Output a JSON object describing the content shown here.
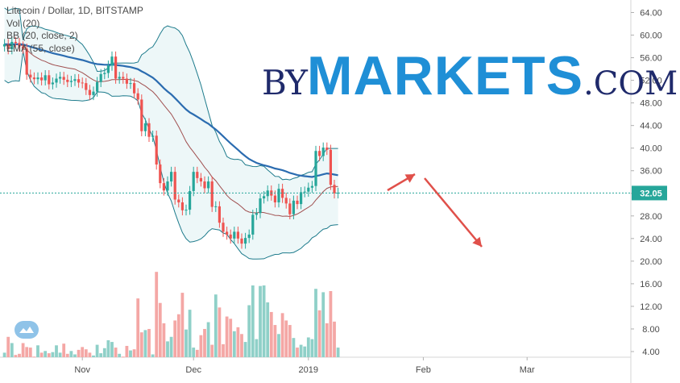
{
  "legend": {
    "title": "Litecoin / Dollar, 1D, BITSTAMP",
    "vol": "Vol (20)",
    "bb": "BB (20, close, 2)",
    "ema": "EMA (55, close)"
  },
  "watermark": {
    "by": "BY",
    "markets": "MARKETS",
    "com": ".COM"
  },
  "colors": {
    "up": "#26a69a",
    "down": "#ef5350",
    "bb_band": "#1e7b8c",
    "bb_basis": "#a05050",
    "ema": "#2b6cb0",
    "price_badge": "#26a69a",
    "arrow": "#e0504a",
    "fill": "#d7eef0"
  },
  "current_price": "32.05",
  "chart_data": {
    "type": "candlestick",
    "title": "Litecoin / Dollar, 1D, BITSTAMP",
    "ylim": [
      3,
      65
    ],
    "y_ticks": [
      "64.00",
      "60.00",
      "56.00",
      "52.00",
      "48.00",
      "44.00",
      "40.00",
      "36.00",
      "32.00",
      "28.00",
      "24.00",
      "20.00",
      "16.00",
      "12.00",
      "8.00",
      "4.00"
    ],
    "x_ticks": [
      {
        "label": "Nov",
        "day": 21
      },
      {
        "label": "Dec",
        "day": 51
      },
      {
        "label": "2019",
        "day": 82
      },
      {
        "label": "Feb",
        "day": 113
      },
      {
        "label": "Mar",
        "day": 141
      }
    ],
    "close": [
      58.4,
      57.5,
      58.8,
      58.6,
      58.0,
      57.6,
      53.0,
      52.5,
      52.2,
      52.5,
      52.0,
      52.9,
      51.3,
      51.6,
      52.3,
      52.6,
      52.1,
      51.7,
      51.9,
      52.2,
      51.6,
      51.5,
      50.3,
      49.4,
      50.0,
      51.7,
      53.1,
      53.3,
      54.6,
      56.2,
      52.3,
      52.6,
      52.3,
      51.4,
      51.5,
      49.7,
      48.6,
      43.0,
      44.4,
      42.0,
      42.2,
      37.1,
      33.8,
      32.5,
      34.1,
      35.8,
      30.9,
      30.4,
      29.0,
      29.1,
      32.4,
      35.8,
      34.7,
      34.1,
      32.9,
      34.1,
      29.6,
      29.7,
      26.8,
      25.2,
      24.7,
      24.0,
      25.2,
      24.0,
      23.1,
      24.1,
      24.7,
      28.2,
      28.5,
      31.1,
      31.5,
      32.5,
      31.6,
      30.4,
      32.8,
      31.2,
      30.2,
      28.3,
      30.7,
      30.1,
      32.2,
      32.3,
      33.0,
      33.3,
      39.5,
      38.6,
      40.1,
      39.7,
      33.5,
      32.0,
      32.1
    ],
    "volume": [
      3.8,
      6.6,
      5.5,
      3.4,
      3.6,
      5.5,
      4.8,
      4.7,
      3.1,
      5.1,
      3.8,
      4.1,
      3.7,
      3.9,
      5.1,
      3.8,
      5.4,
      3.6,
      4.1,
      3.5,
      4.3,
      4.8,
      4.4,
      3.8,
      3.3,
      5.2,
      3.7,
      4.6,
      6.0,
      5.7,
      4.7,
      3.6,
      3.1,
      5.0,
      4.2,
      4.4,
      13.4,
      7.4,
      7.8,
      8.0,
      3.5,
      18.1,
      12.6,
      9.0,
      5.8,
      6.6,
      9.5,
      10.6,
      14.4,
      7.9,
      11.4,
      4.7,
      4.3,
      6.9,
      8.0,
      9.2,
      5.2,
      14.1,
      11.8,
      5.3,
      10.2,
      9.8,
      7.6,
      8.3,
      7.1,
      5.7,
      12.2,
      15.7,
      6.2,
      15.6,
      15.7,
      12.7,
      11.0,
      8.7,
      7.1,
      10.8,
      9.5,
      8.7,
      6.4,
      4.7,
      5.2,
      4.9,
      6.5,
      6.2,
      15.1,
      11.3,
      14.5,
      9.0,
      14.7,
      9.3,
      4.7
    ]
  }
}
